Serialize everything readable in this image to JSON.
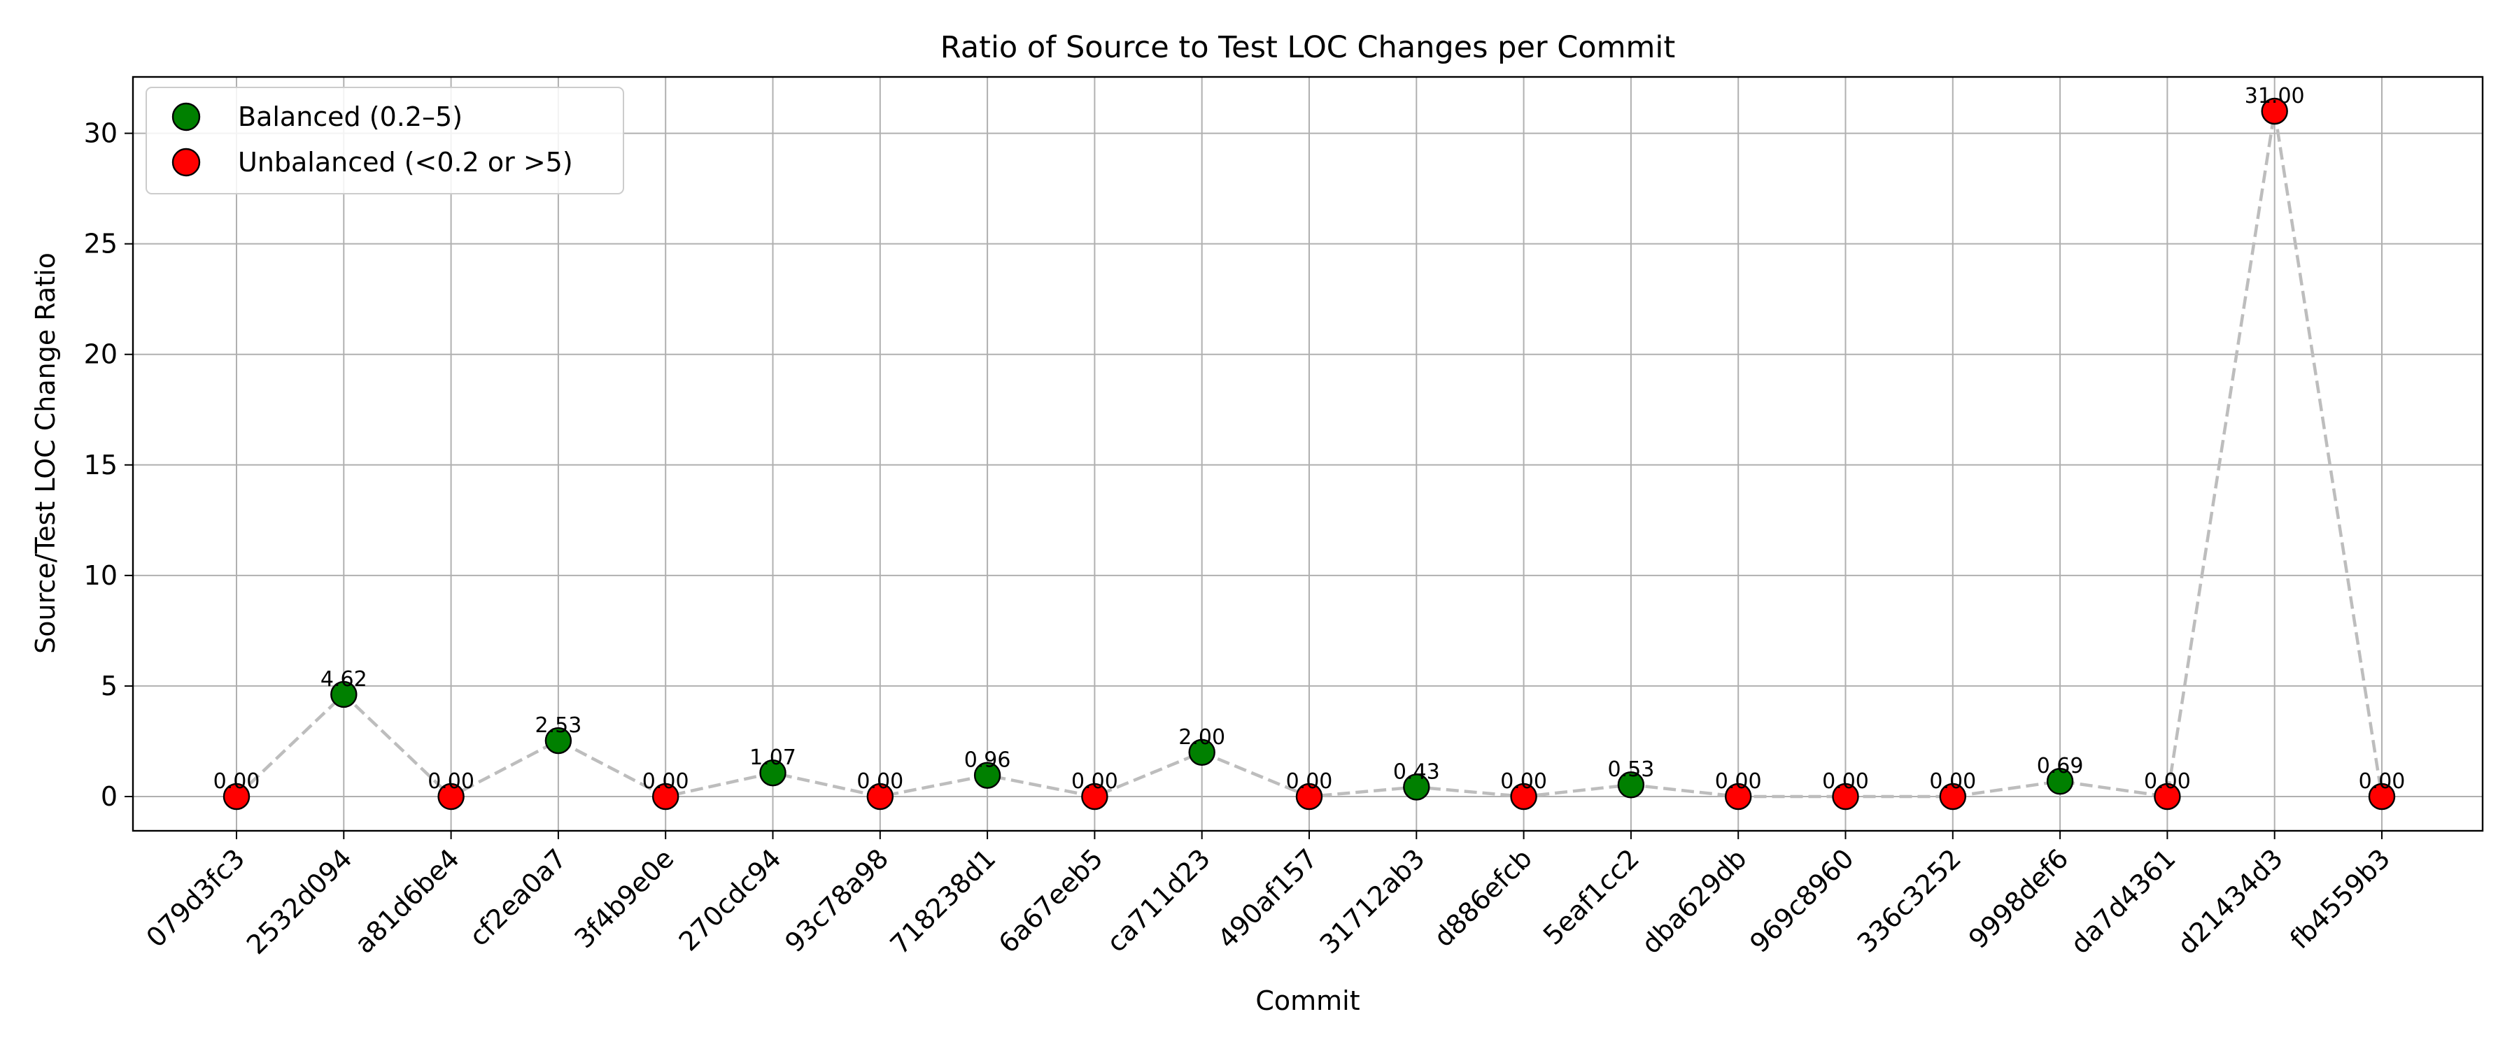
{
  "chart_data": {
    "type": "line",
    "title": "Ratio of Source to Test LOC Changes per Commit",
    "xlabel": "Commit",
    "ylabel": "Source/Test LOC Change Ratio",
    "ylim": [
      -1.55,
      32.55
    ],
    "yticks": [
      0,
      5,
      10,
      15,
      20,
      25,
      30
    ],
    "grid": true,
    "legend_position": "top-left",
    "line_style": "dashed",
    "line_color": "#bdbdbd",
    "categories": [
      "079d3fc3",
      "2532d094",
      "a81d6be4",
      "cf2ea0a7",
      "3f4b9e0e",
      "270cdc94",
      "93c78a98",
      "718238d1",
      "6a67eeb5",
      "ca711d23",
      "490af157",
      "31712ab3",
      "d886efcb",
      "5eaf1cc2",
      "dba629db",
      "969c8960",
      "336c3252",
      "9998def6",
      "da7d4361",
      "d21434d3",
      "fb4559b3"
    ],
    "values": [
      0.0,
      4.62,
      0.0,
      2.53,
      0.0,
      1.07,
      0.0,
      0.96,
      0.0,
      2.0,
      0.0,
      0.43,
      0.0,
      0.53,
      0.0,
      0.0,
      0.0,
      0.69,
      0.0,
      31.0,
      0.0
    ],
    "value_labels": [
      "0.00",
      "4.62",
      "0.00",
      "2.53",
      "0.00",
      "1.07",
      "0.00",
      "0.96",
      "0.00",
      "2.00",
      "0.00",
      "0.43",
      "0.00",
      "0.53",
      "0.00",
      "0.00",
      "0.00",
      "0.69",
      "0.00",
      "31.00",
      "0.00"
    ],
    "groups": [
      {
        "name": "Balanced (0.2–5)",
        "color": "#008000",
        "rule": "balanced"
      },
      {
        "name": "Unbalanced (<0.2 or >5)",
        "color": "#ff0000",
        "rule": "unbalanced"
      }
    ]
  }
}
